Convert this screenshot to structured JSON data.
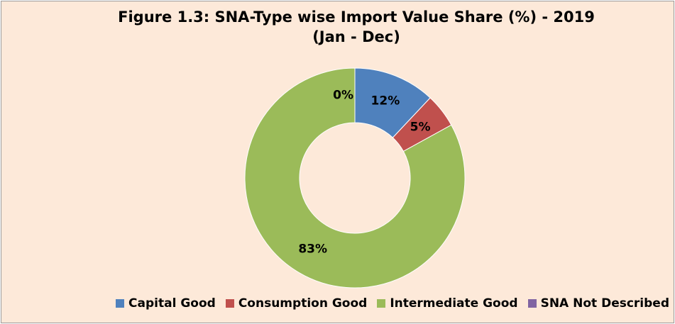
{
  "chart_data": {
    "type": "donut",
    "title": "Figure 1.3: SNA-Type wise Import Value Share (%) - 2019 (Jan - Dec)",
    "categories": [
      "Capital Good",
      "Consumption Good",
      "Intermediate Good",
      "SNA Not Described"
    ],
    "values": [
      12,
      5,
      83,
      0
    ],
    "value_labels": [
      "12%",
      "5%",
      "83%",
      "0%"
    ],
    "colors": [
      "#4f81bd",
      "#c0504d",
      "#9bbb59",
      "#8064a2"
    ],
    "legend": "bottom"
  }
}
